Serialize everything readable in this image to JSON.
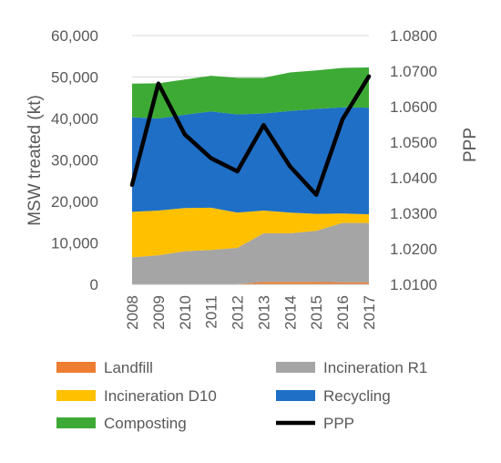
{
  "chart_data": {
    "type": "area",
    "stacked": true,
    "categories": [
      "2008",
      "2009",
      "2010",
      "2011",
      "2012",
      "2013",
      "2014",
      "2015",
      "2016",
      "2017"
    ],
    "ylabel": "MSW treated (kt)",
    "y2label": "PPP",
    "ylim": [
      0,
      60000
    ],
    "y_ticks": [
      "0",
      "10,000",
      "20,000",
      "30,000",
      "40,000",
      "50,000",
      "60,000"
    ],
    "y2lim": [
      1.01,
      1.08
    ],
    "y2_ticks": [
      "1.0100",
      "1.0200",
      "1.0300",
      "1.0400",
      "1.0500",
      "1.0600",
      "1.0700",
      "1.0800"
    ],
    "grid": "horizontal",
    "legend_position": "bottom",
    "series": [
      {
        "name": "Landfill",
        "color": "#ED7D31",
        "values": [
          100,
          100,
          100,
          100,
          100,
          600,
          600,
          600,
          500,
          500
        ]
      },
      {
        "name": "Incineration R1",
        "color": "#A5A5A5",
        "values": [
          6400,
          6900,
          7900,
          8200,
          8700,
          11700,
          11700,
          12300,
          14300,
          14300
        ]
      },
      {
        "name": "Incineration D10",
        "color": "#FFC000",
        "values": [
          11000,
          10800,
          10400,
          10200,
          8500,
          5500,
          5000,
          4100,
          2300,
          2100
        ]
      },
      {
        "name": "Recycling",
        "color": "#1F6FC6",
        "values": [
          22800,
          22200,
          22500,
          23200,
          23700,
          23400,
          24500,
          25300,
          25600,
          25700
        ]
      },
      {
        "name": "Composting",
        "color": "#3DAA35",
        "values": [
          8100,
          8500,
          8500,
          8600,
          8800,
          8600,
          9300,
          9300,
          9500,
          9700
        ]
      }
    ],
    "line_series": {
      "name": "PPP",
      "color": "#000000",
      "axis": "secondary",
      "values": [
        1.038,
        1.0665,
        1.0522,
        1.0455,
        1.0418,
        1.0548,
        1.0432,
        1.0352,
        1.0565,
        1.0685
      ]
    }
  }
}
